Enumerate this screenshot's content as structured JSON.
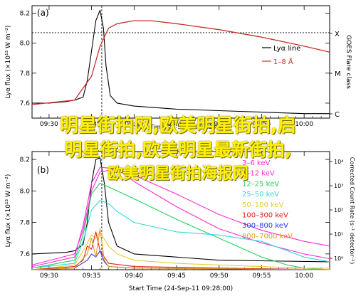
{
  "overlay": {
    "line1": "明星街拍网,欧美明星街拍,启",
    "line2": "明星街拍,欧美明星最新街拍,",
    "line3": "欧美明星街拍海报网"
  },
  "chart_data": [
    {
      "panel": "(a)",
      "type": "line",
      "ylabel": "Lyα flux (×10¹³ W m⁻²)",
      "ylabel_right": "GOES Flare class",
      "xlabel": "Start Time (24-Sep-11 09:28:00)",
      "ylim": [
        7.5,
        8.25
      ],
      "yticks": [
        7.6,
        7.8,
        8.0,
        8.2
      ],
      "xticks": [
        "09:30",
        "09:35",
        "09:40",
        "09:45",
        "09:50",
        "09:55",
        "10:00"
      ],
      "x_minutes_range": [
        28,
        63
      ],
      "right_axis_labels": [
        "X",
        "M",
        "C"
      ],
      "legend": [
        {
          "label": "Lyα line",
          "color": "#000000"
        },
        {
          "label": "1–8 Å",
          "color": "#c8302b"
        }
      ],
      "series": [
        {
          "name": "Lyα line",
          "x": [
            28,
            30,
            32,
            33,
            34,
            34.5,
            35,
            35.5,
            36,
            36.4,
            36.7,
            37.2,
            38,
            40,
            45,
            50,
            55,
            60,
            63
          ],
          "values": [
            7.6,
            7.6,
            7.61,
            7.62,
            7.64,
            7.75,
            7.95,
            8.15,
            8.22,
            8.1,
            7.85,
            7.65,
            7.6,
            7.58,
            7.56,
            7.55,
            7.54,
            7.53,
            7.53
          ]
        },
        {
          "name": "1–8 Å",
          "x": [
            28,
            33,
            35,
            36,
            37,
            38,
            40,
            42,
            45,
            50,
            55,
            60,
            63
          ],
          "values": [
            7.59,
            7.62,
            7.78,
            7.98,
            8.1,
            8.13,
            8.15,
            8.15,
            8.13,
            8.09,
            8.04,
            7.98,
            7.94
          ]
        }
      ],
      "reference_line_y": 8.07,
      "reference_line_x": 36.2
    },
    {
      "panel": "(b)",
      "type": "line",
      "ylabel": "Lyα flux (×10¹³ W m⁻²)",
      "ylabel_right": "Corrected Count Rate (s⁻¹ detector⁻¹)",
      "xlabel": "Start Time (24-Sep-11 09:28:00)",
      "ylim": [
        7.5,
        8.25
      ],
      "yticks": [
        7.6,
        7.8,
        8.0,
        8.2
      ],
      "xticks": [
        "09:30",
        "09:35",
        "09:40",
        "09:45",
        "09:50",
        "09:55",
        "10:00"
      ],
      "right_ticks": [
        "10⁴",
        "10³",
        "10²",
        "10¹",
        "10⁰"
      ],
      "legend": [
        {
          "label": "3–6 keV",
          "color": "#ff2ad4"
        },
        {
          "label": "6–12 keV",
          "color": "#ff2ad4"
        },
        {
          "label": "12–25 keV",
          "color": "#20d060"
        },
        {
          "label": "25–50 keV",
          "color": "#30d8d8"
        },
        {
          "label": "50–100 keV",
          "color": "#e0d030"
        },
        {
          "label": "100–300 keV",
          "color": "#e0201a"
        },
        {
          "label": "300–800 keV",
          "color": "#2a3ad8"
        },
        {
          "label": "800–7000 keV",
          "color": "#e09a20"
        }
      ],
      "series": [
        {
          "name": "Lyα line",
          "x": [
            28,
            32,
            33,
            34,
            34.5,
            35,
            35.5,
            36,
            36.5,
            37,
            38,
            40,
            50,
            63
          ],
          "values": [
            7.6,
            7.61,
            7.62,
            7.66,
            7.8,
            8.05,
            8.2,
            8.21,
            8.05,
            7.8,
            7.65,
            7.6,
            7.56,
            7.55
          ]
        },
        {
          "name": "3–6 keV",
          "x": [
            28,
            33,
            34,
            35,
            36,
            38,
            40,
            45,
            50,
            55,
            60,
            63
          ],
          "values": [
            7.53,
            7.6,
            7.75,
            8.0,
            8.12,
            8.14,
            8.1,
            7.98,
            7.85,
            7.75,
            7.68,
            7.65
          ]
        },
        {
          "name": "6–12 keV",
          "x": [
            28,
            33,
            34,
            35,
            36,
            38,
            40,
            45,
            50,
            55,
            60,
            63
          ],
          "values": [
            7.52,
            7.58,
            7.78,
            8.05,
            8.15,
            8.14,
            8.06,
            7.9,
            7.76,
            7.67,
            7.6,
            7.57
          ]
        },
        {
          "name": "12–25 keV",
          "x": [
            28,
            33,
            34,
            35,
            36,
            38,
            40,
            45,
            50,
            55,
            58,
            60,
            63
          ],
          "values": [
            7.51,
            7.56,
            7.72,
            7.98,
            8.05,
            8.0,
            7.95,
            7.82,
            7.7,
            7.58,
            7.53,
            7.51,
            7.5
          ]
        },
        {
          "name": "25–50 keV",
          "x": [
            28,
            33,
            34,
            35,
            36,
            37,
            38,
            40,
            45,
            50,
            55,
            58,
            60,
            63
          ],
          "values": [
            7.51,
            7.54,
            7.68,
            7.88,
            7.94,
            7.92,
            7.87,
            7.8,
            7.74,
            7.72,
            7.68,
            7.62,
            7.58,
            7.55
          ]
        },
        {
          "name": "50–100 keV",
          "x": [
            28,
            33,
            34,
            35,
            35.5,
            36,
            37,
            38,
            40,
            45,
            50,
            55,
            60,
            63
          ],
          "values": [
            7.5,
            7.53,
            7.62,
            7.72,
            7.7,
            7.74,
            7.65,
            7.6,
            7.56,
            7.54,
            7.53,
            7.52,
            7.51,
            7.51
          ]
        },
        {
          "name": "100–300 keV",
          "x": [
            28,
            33,
            34,
            34.5,
            35,
            35.5,
            36,
            36.5,
            37,
            40,
            50,
            63
          ],
          "values": [
            7.5,
            7.52,
            7.56,
            7.65,
            7.63,
            7.74,
            7.62,
            7.58,
            7.54,
            7.52,
            7.51,
            7.5
          ]
        },
        {
          "name": "300–800 keV",
          "x": [
            28,
            33,
            34.5,
            35,
            35.5,
            36,
            36.5,
            37,
            40,
            63
          ],
          "values": [
            7.5,
            7.51,
            7.56,
            7.6,
            7.58,
            7.62,
            7.55,
            7.52,
            7.51,
            7.5
          ]
        },
        {
          "name": "800–7000 keV",
          "x": [
            28,
            33,
            34.5,
            35,
            35.5,
            36,
            36.5,
            37,
            40,
            63
          ],
          "values": [
            7.5,
            7.51,
            7.6,
            7.7,
            7.58,
            7.76,
            7.56,
            7.52,
            7.51,
            7.5
          ]
        }
      ],
      "reference_line_x": 36.2
    }
  ]
}
